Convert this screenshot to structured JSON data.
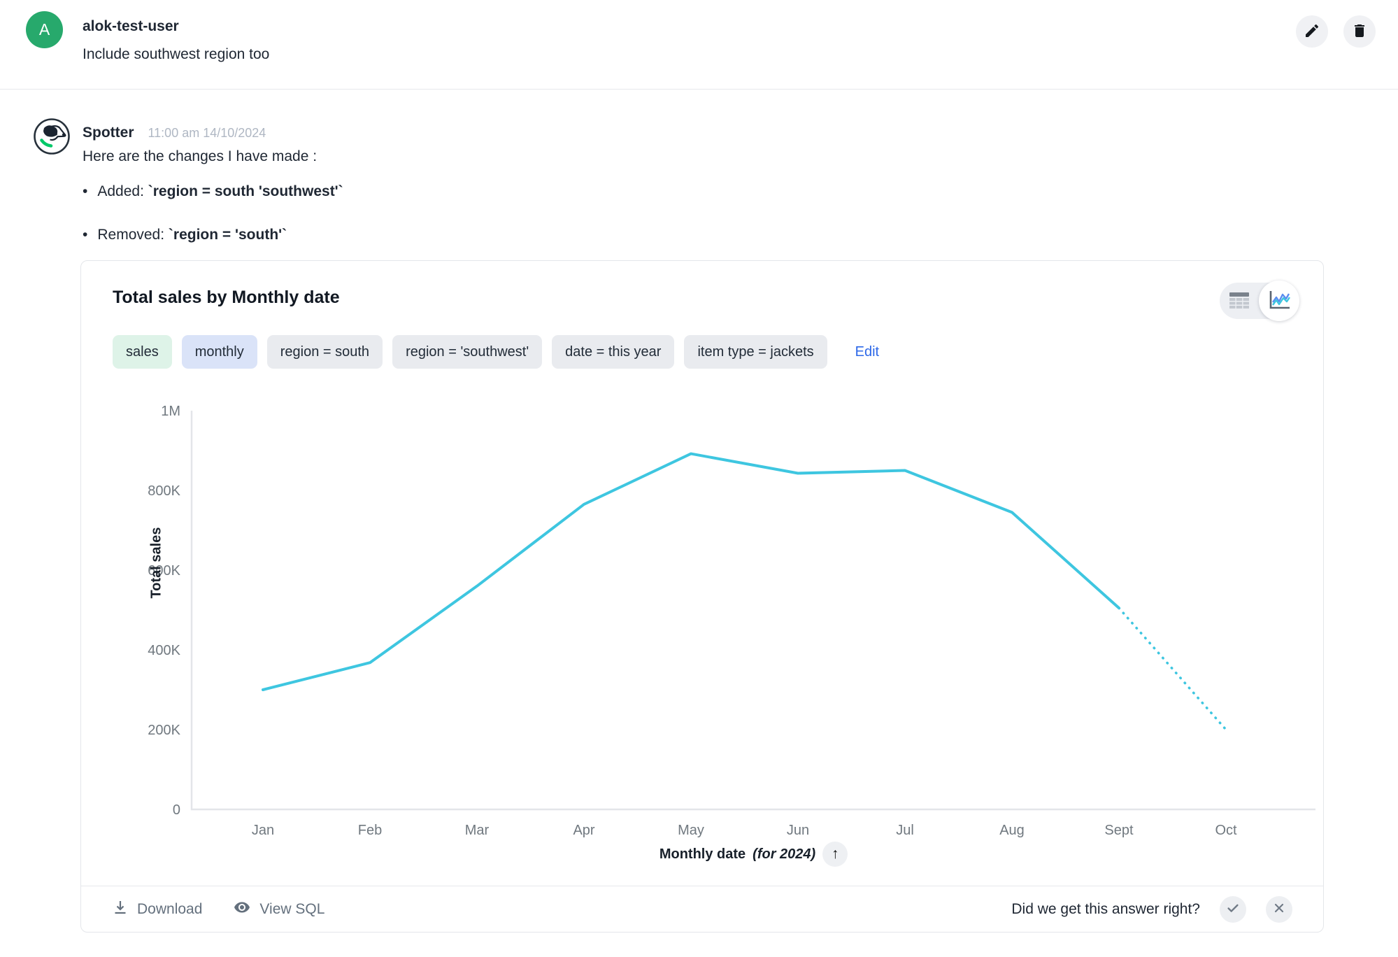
{
  "user_message": {
    "avatar_letter": "A",
    "username": "alok-test-user",
    "text": "Include southwest region too"
  },
  "assistant": {
    "name": "Spotter",
    "timestamp": "11:00 am 14/10/2024",
    "intro": "Here are the changes I have made :",
    "bullets": [
      {
        "label": "Added: ",
        "code": "`region = south 'southwest'`"
      },
      {
        "label": "Removed: ",
        "code": "`region = 'south'`"
      }
    ]
  },
  "card": {
    "title": "Total sales by Monthly date",
    "chips": [
      {
        "label": "sales",
        "type": "green"
      },
      {
        "label": "monthly",
        "type": "blue"
      },
      {
        "label": "region = south",
        "type": "gray"
      },
      {
        "label": "region = 'southwest'",
        "type": "gray"
      },
      {
        "label": "date = this year",
        "type": "gray"
      },
      {
        "label": "item type = jackets",
        "type": "gray"
      }
    ],
    "edit_label": "Edit",
    "sort_arrow": "↑",
    "footer": {
      "download_label": "Download",
      "view_sql_label": "View SQL",
      "feedback_question": "Did we get this answer right?"
    }
  },
  "chart_data": {
    "type": "line",
    "title": "Total sales by Monthly date",
    "categories": [
      "Jan",
      "Feb",
      "Mar",
      "Apr",
      "May",
      "Jun",
      "Jul",
      "Aug",
      "Sept",
      "Oct"
    ],
    "values": [
      300000,
      368000,
      560000,
      765000,
      892000,
      843000,
      850000,
      745000,
      505000,
      200000
    ],
    "dashed_from_index": 8,
    "dashed_note": "Sept to Oct segment is dotted (projection for incomplete month)",
    "ylabel": "Total sales",
    "xlabel": "Monthly date",
    "xlabel_suffix": "(for 2024)",
    "yticks": [
      "0",
      "200K",
      "400K",
      "600K",
      "800K",
      "1M"
    ],
    "ytick_values": [
      0,
      200000,
      400000,
      600000,
      800000,
      1000000
    ],
    "ylim": [
      0,
      1000000
    ],
    "line_color": "#3EC6E0",
    "axis_color": "#E3E5E9",
    "tick_text_color": "#70787F",
    "grid": false,
    "legend": false
  },
  "colors": {
    "accent_blue": "#2D68E8",
    "avatar_green": "#27A96C",
    "collar_green": "#00C868",
    "chip_green_bg": "#DEF3E8",
    "chip_blue_bg": "#DAE3F8",
    "chip_gray_bg": "#E9EBEF",
    "footer_gray": "#64707D",
    "toggle_chart_blue": "#5B8DEF"
  }
}
